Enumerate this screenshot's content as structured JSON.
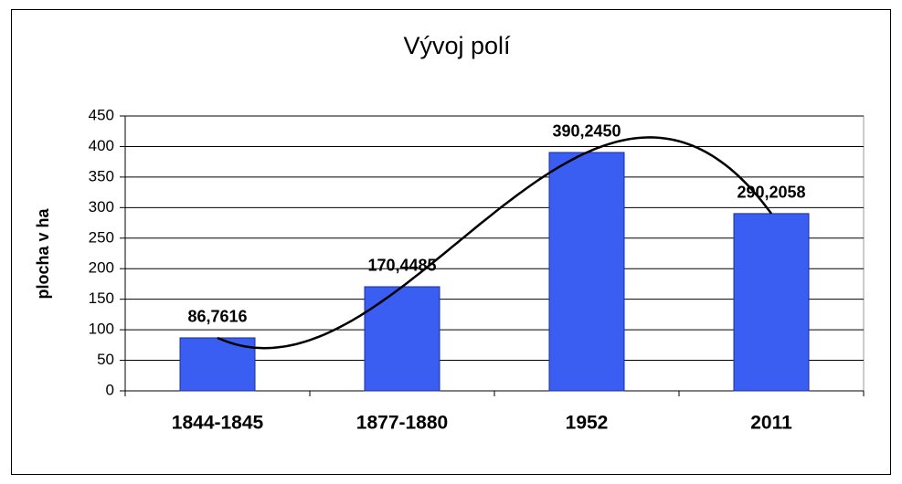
{
  "chart_data": {
    "type": "bar",
    "title": "Vývoj polí",
    "y_label": "plocha v ha",
    "categories": [
      "1844-1845",
      "1877-1880",
      "1952",
      "2011"
    ],
    "values": [
      86.7616,
      170.4485,
      390.245,
      290.2058
    ],
    "value_labels": [
      "86,7616",
      "170,4485",
      "390,2450",
      "290,2058"
    ],
    "color": "#3b5ef2",
    "ylim": [
      0,
      450
    ],
    "yticks": [
      0,
      50,
      100,
      150,
      200,
      250,
      300,
      350,
      400,
      450
    ],
    "grid": true,
    "legend": false,
    "trendline": {
      "type": "polynomial",
      "order": 3,
      "color": "#000000"
    }
  }
}
